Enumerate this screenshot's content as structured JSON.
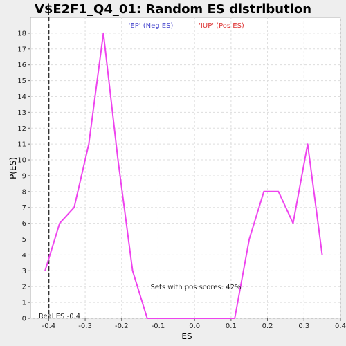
{
  "chart_data": {
    "type": "line",
    "title": "V$E2F1_Q4_01: Random ES distribution",
    "xlabel": "ES",
    "ylabel": "P(ES)",
    "xlim": [
      -0.45,
      0.4
    ],
    "ylim": [
      0,
      19
    ],
    "xticks": [
      -0.4,
      -0.3,
      -0.2,
      -0.1,
      0.0,
      0.1,
      0.2,
      0.3,
      0.4
    ],
    "xtick_labels": [
      "-0.4",
      "-0.3",
      "-0.2",
      "-0.1",
      "0.0",
      "0.1",
      "0.2",
      "0.3",
      "0.4"
    ],
    "yticks": [
      0,
      1,
      2,
      3,
      4,
      5,
      6,
      7,
      8,
      9,
      10,
      11,
      12,
      13,
      14,
      15,
      16,
      17,
      18
    ],
    "ytick_labels": [
      "0",
      "1",
      "2",
      "3",
      "4",
      "5",
      "6",
      "7",
      "8",
      "9",
      "10",
      "11",
      "12",
      "13",
      "14",
      "15",
      "16",
      "17",
      "18"
    ],
    "grid": true,
    "legend": [
      {
        "label": "'EP' (Neg ES)",
        "color": "#4444cc"
      },
      {
        "label": "'IUP' (Pos ES)",
        "color": "#dd3333"
      }
    ],
    "series": [
      {
        "color": "#ee44ee",
        "x": [
          -0.41,
          -0.37,
          -0.33,
          -0.29,
          -0.25,
          -0.21,
          -0.17,
          -0.13,
          -0.09,
          -0.05,
          -0.01,
          0.03,
          0.07,
          0.11,
          0.15,
          0.19,
          0.23,
          0.27,
          0.31,
          0.35
        ],
        "y": [
          3,
          6,
          7,
          11,
          18,
          10,
          3,
          0,
          0,
          0,
          0,
          0,
          0,
          0,
          5,
          8,
          8,
          6,
          11,
          4
        ]
      }
    ],
    "real_es": {
      "value": -0.4,
      "label": "Real ES -0.4"
    },
    "annotation": "Sets with pos scores: 42%"
  },
  "colors": {
    "background": "#eeeeee",
    "plot_background": "#ffffff",
    "grid": "#dddddd",
    "line": "#ee44ee",
    "real_es_line": "#333333"
  }
}
